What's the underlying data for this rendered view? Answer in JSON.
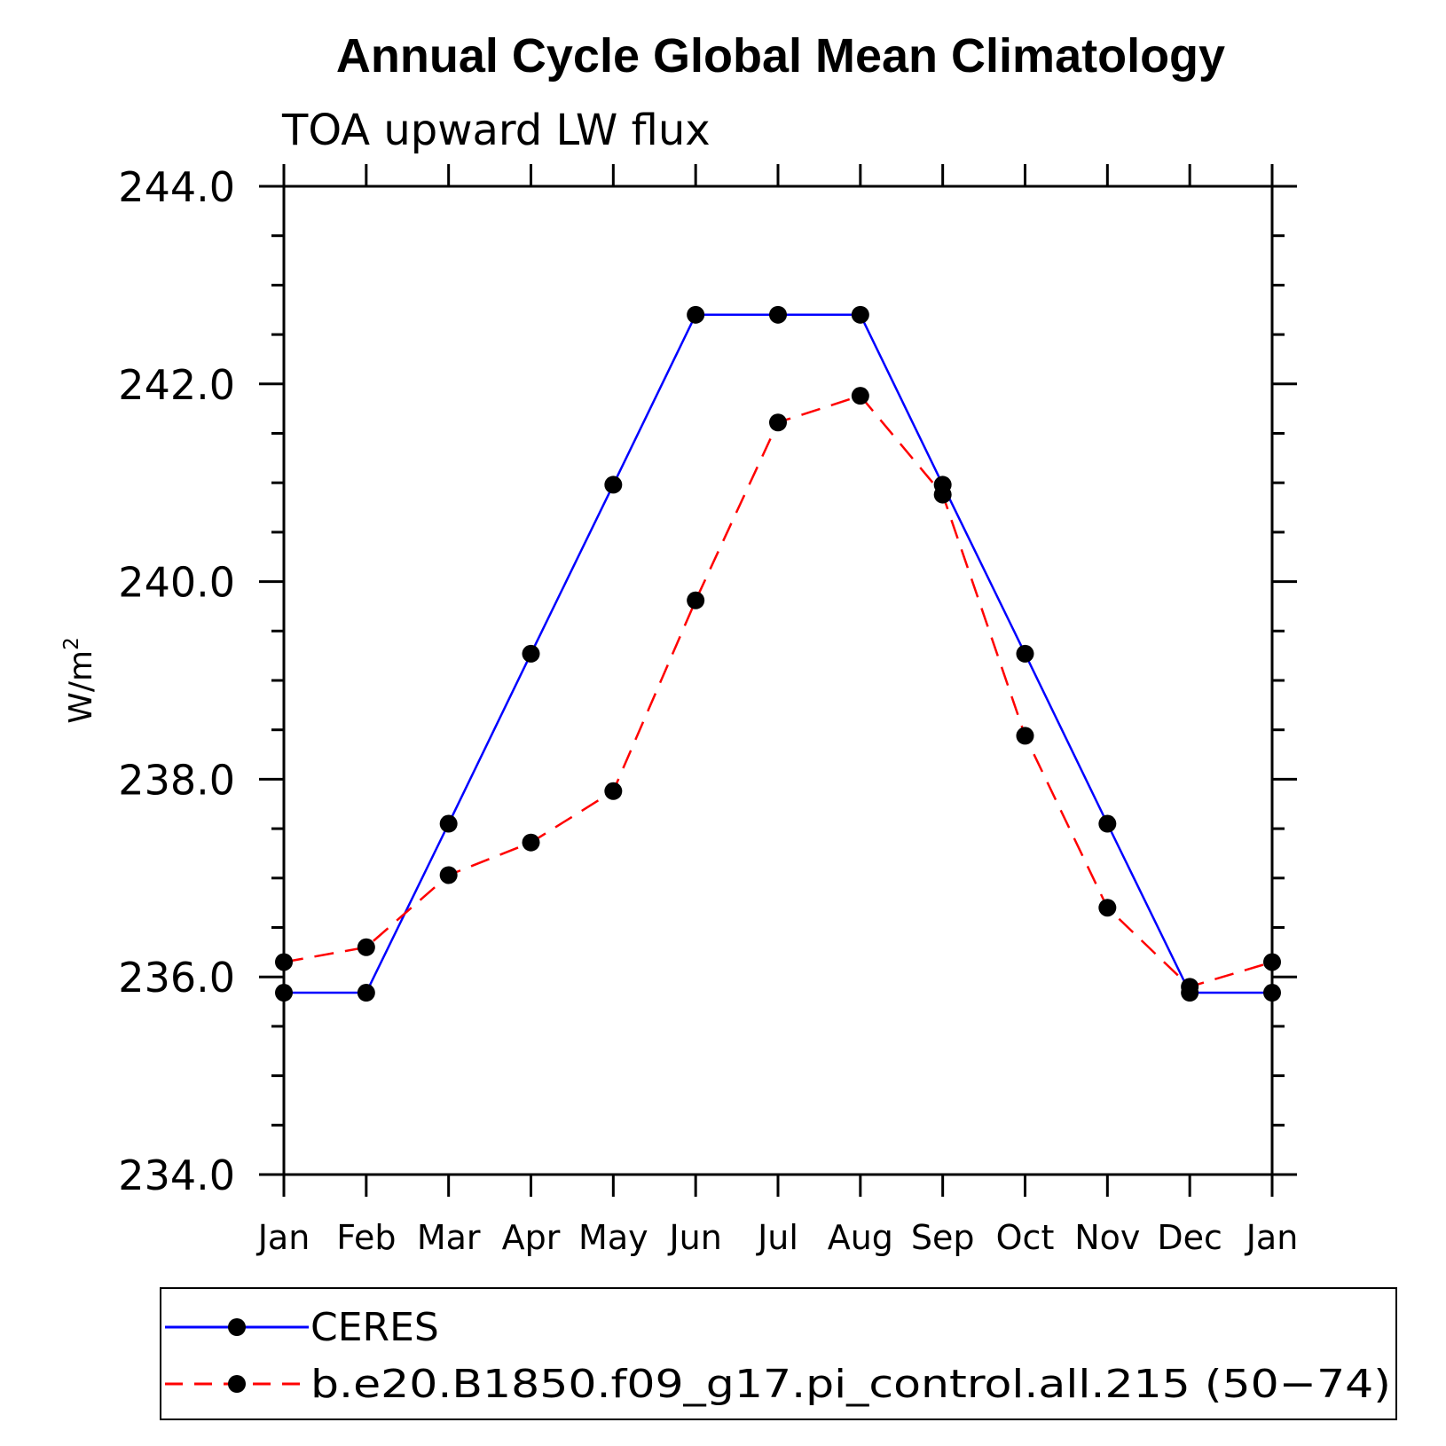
{
  "chart_data": {
    "type": "line",
    "title": "Annual Cycle Global Mean Climatology",
    "subtitle": "TOA upward LW flux",
    "ylabel_base": "W/m",
    "ylabel_sup": "2",
    "xlabel": "",
    "categories": [
      "Jan",
      "Feb",
      "Mar",
      "Apr",
      "May",
      "Jun",
      "Jul",
      "Aug",
      "Sep",
      "Oct",
      "Nov",
      "Dec",
      "Jan"
    ],
    "ylim": [
      234.0,
      244.0
    ],
    "yticks": [
      234.0,
      236.0,
      238.0,
      240.0,
      242.0,
      244.0
    ],
    "ytick_labels": [
      "234.0",
      "236.0",
      "238.0",
      "240.0",
      "242.0",
      "244.0"
    ],
    "grid": false,
    "legend_position": "bottom",
    "series": [
      {
        "name": "CERES",
        "color": "#0000ff",
        "dash": "solid",
        "marker": "filled-circle",
        "values": [
          235.84,
          235.84,
          237.55,
          239.27,
          240.98,
          242.7,
          242.7,
          242.7,
          240.98,
          239.27,
          237.55,
          235.84,
          235.84
        ]
      },
      {
        "name": "b.e20.B1850.f09_g17.pi_control.all.215 (50−74)",
        "color": "#ff0000",
        "dash": "dashed",
        "marker": "filled-circle",
        "values": [
          236.15,
          236.3,
          237.03,
          237.36,
          237.88,
          239.81,
          241.61,
          241.88,
          240.88,
          238.44,
          236.7,
          235.9,
          236.15
        ]
      }
    ]
  }
}
